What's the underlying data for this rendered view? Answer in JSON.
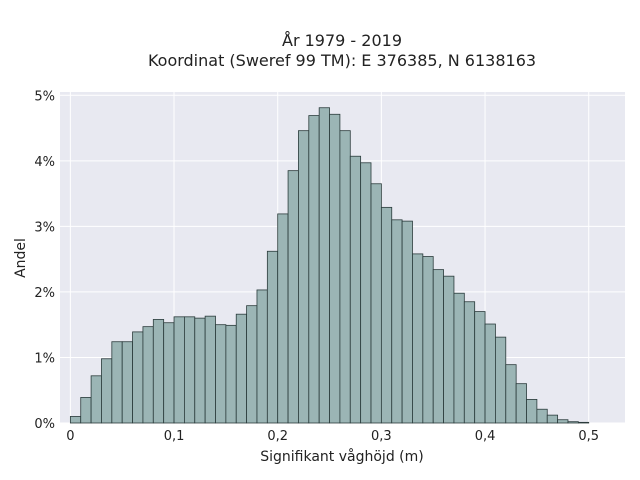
{
  "chart_data": {
    "type": "bar",
    "title": "År 1979 - 2019",
    "subtitle": "Koordinat (Sweref 99 TM): E 376385, N 6138163",
    "xlabel": "Signifikant våghöjd (m)",
    "ylabel": "Andel",
    "xlim": [
      -0.01,
      0.535
    ],
    "ylim": [
      0,
      5.05
    ],
    "x_ticks": [
      0,
      0.1,
      0.2,
      0.3,
      0.4,
      0.5
    ],
    "x_tick_labels": [
      "0",
      "0,1",
      "0,2",
      "0,3",
      "0,4",
      "0,5"
    ],
    "y_ticks": [
      0,
      1,
      2,
      3,
      4,
      5
    ],
    "y_tick_labels": [
      "0%",
      "1%",
      "2%",
      "3%",
      "4%",
      "5%"
    ],
    "bin_width": 0.01,
    "bin_start": 0.0,
    "values": [
      0.1,
      0.39,
      0.72,
      0.98,
      1.24,
      1.24,
      1.39,
      1.47,
      1.58,
      1.53,
      1.62,
      1.62,
      1.6,
      1.63,
      1.5,
      1.49,
      1.66,
      1.79,
      2.03,
      2.62,
      3.19,
      3.85,
      4.46,
      4.69,
      4.81,
      4.71,
      4.46,
      4.07,
      3.97,
      3.65,
      3.29,
      3.1,
      3.08,
      2.58,
      2.54,
      2.34,
      2.24,
      1.98,
      1.85,
      1.7,
      1.51,
      1.31,
      0.89,
      0.6,
      0.36,
      0.21,
      0.12,
      0.05,
      0.02,
      0.01
    ],
    "grid": true,
    "colors": {
      "bar_fill": "#9bb5b5",
      "bar_edge": "#2a3b3b",
      "plot_bg": "#e8e9f1",
      "grid": "#ffffff"
    }
  }
}
